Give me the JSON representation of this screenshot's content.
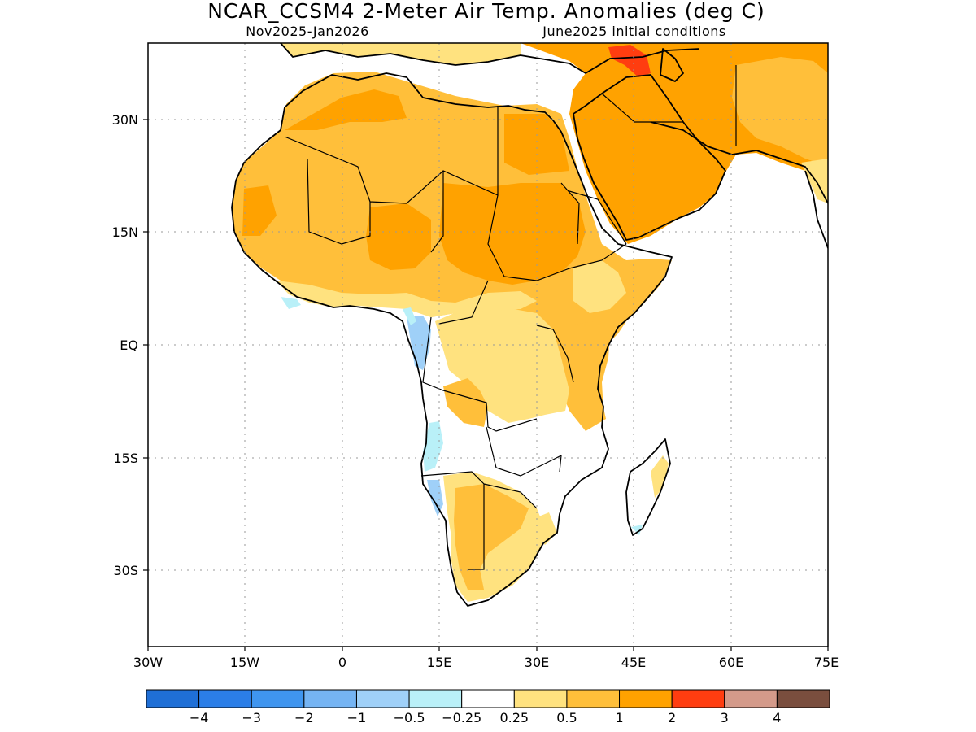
{
  "title": "NCAR_CCSM4 2-Meter Air Temp. Anomalies (deg C)",
  "subtitle_left": "Nov2025-Jan2026",
  "subtitle_right": "June2025 initial conditions",
  "map": {
    "lon_range": [
      -30,
      75
    ],
    "lat_range": [
      -40,
      40
    ],
    "grid": true,
    "lon_ticks": [
      "30W",
      "15W",
      "0",
      "15E",
      "30E",
      "45E",
      "60E",
      "75E"
    ],
    "lat_ticks": [
      "30N",
      "15N",
      "EQ",
      "15S",
      "30S"
    ]
  },
  "colorbar": {
    "colors": [
      "#1f6fd6",
      "#2b7ee8",
      "#3f95ef",
      "#75b4f3",
      "#9fd0f8",
      "#b9f0f8",
      "#ffffff",
      "#ffe27f",
      "#ffbf3a",
      "#ffa200",
      "#ff3d10",
      "#d49a8a",
      "#7a4e3e"
    ],
    "labels": [
      "-4",
      "-3",
      "-2",
      "-1",
      "-0.5",
      "-0.25",
      "0.25",
      "0.5",
      "1",
      "2",
      "3",
      "4"
    ]
  },
  "anomaly_colors": {
    "strong_warm": "#ffa200",
    "warm": "#ffbf3a",
    "slight_warm": "#ffe27f",
    "hot": "#ff3d10",
    "cool": "#9fd0f8",
    "slight_cool": "#b9f0f8"
  }
}
